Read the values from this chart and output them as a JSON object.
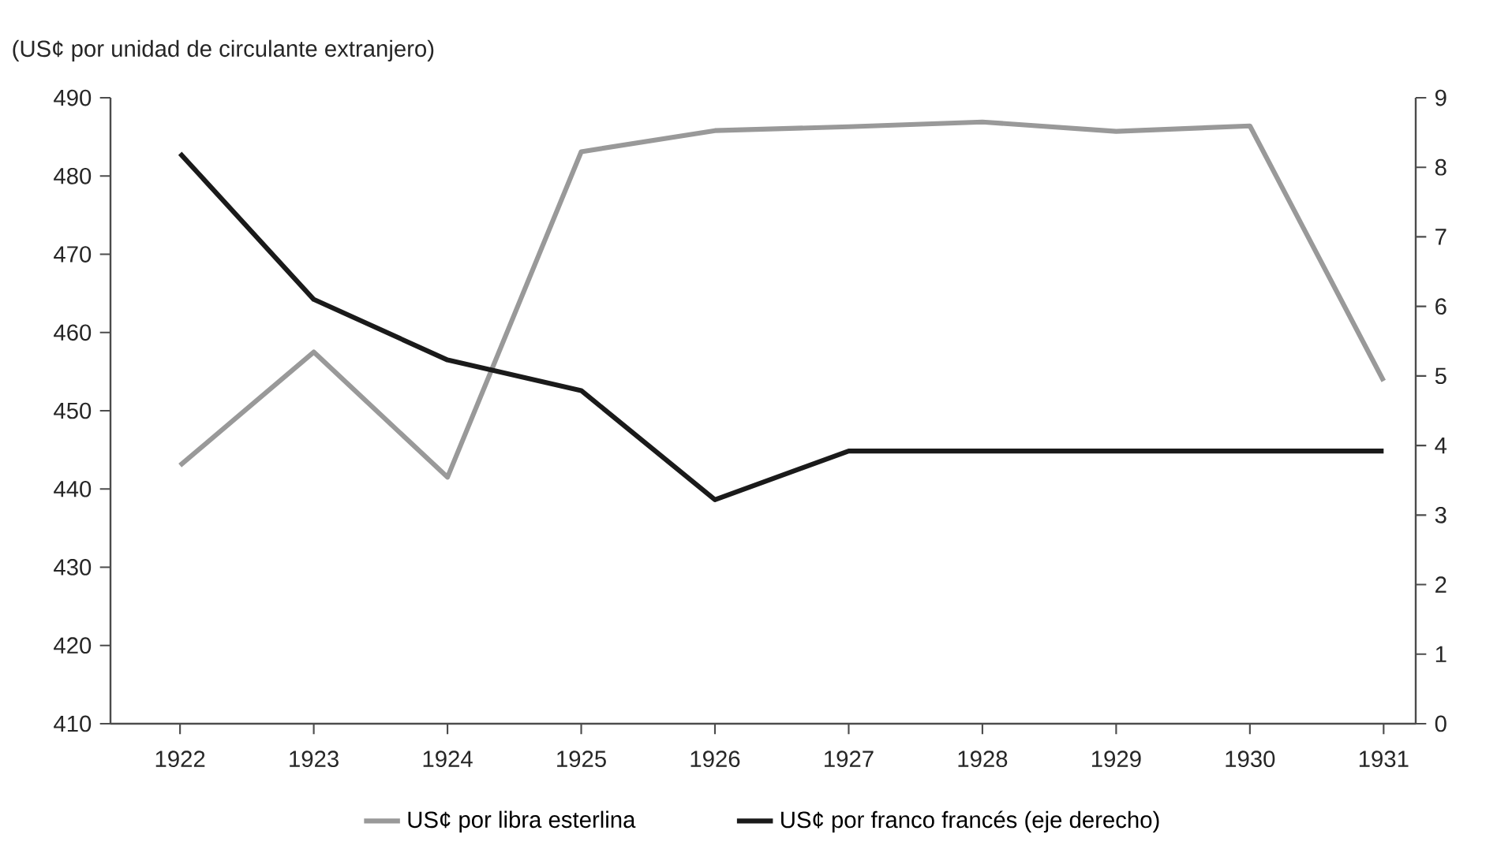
{
  "chart_data": {
    "type": "line",
    "ylabel": "(US¢ por unidad de circulante extranjero)",
    "categories": [
      "1922",
      "1923",
      "1924",
      "1925",
      "1926",
      "1927",
      "1928",
      "1929",
      "1930",
      "1931"
    ],
    "series": [
      {
        "name": "US¢ por libra esterlina",
        "color": "#999999",
        "values": [
          443.0,
          457.5,
          441.5,
          483.1,
          485.8,
          486.3,
          486.9,
          485.7,
          486.4,
          453.8
        ]
      },
      {
        "name": "US¢ por franco francés (eje derecho)",
        "color": "#1a1a1a",
        "axis": "y2",
        "values": [
          8.2,
          6.1,
          5.23,
          4.79,
          3.22,
          3.92,
          3.92,
          3.92,
          3.92,
          3.92
        ]
      }
    ],
    "ylim": [
      410,
      490
    ],
    "yticks": [
      410,
      420,
      430,
      440,
      450,
      460,
      470,
      480,
      490
    ],
    "y2lim": [
      0,
      9
    ],
    "y2ticks": [
      0,
      1,
      2,
      3,
      4,
      5,
      6,
      7,
      8,
      9
    ],
    "grid": false,
    "legend": "bottom",
    "marker": "none",
    "line_style": "solid"
  }
}
